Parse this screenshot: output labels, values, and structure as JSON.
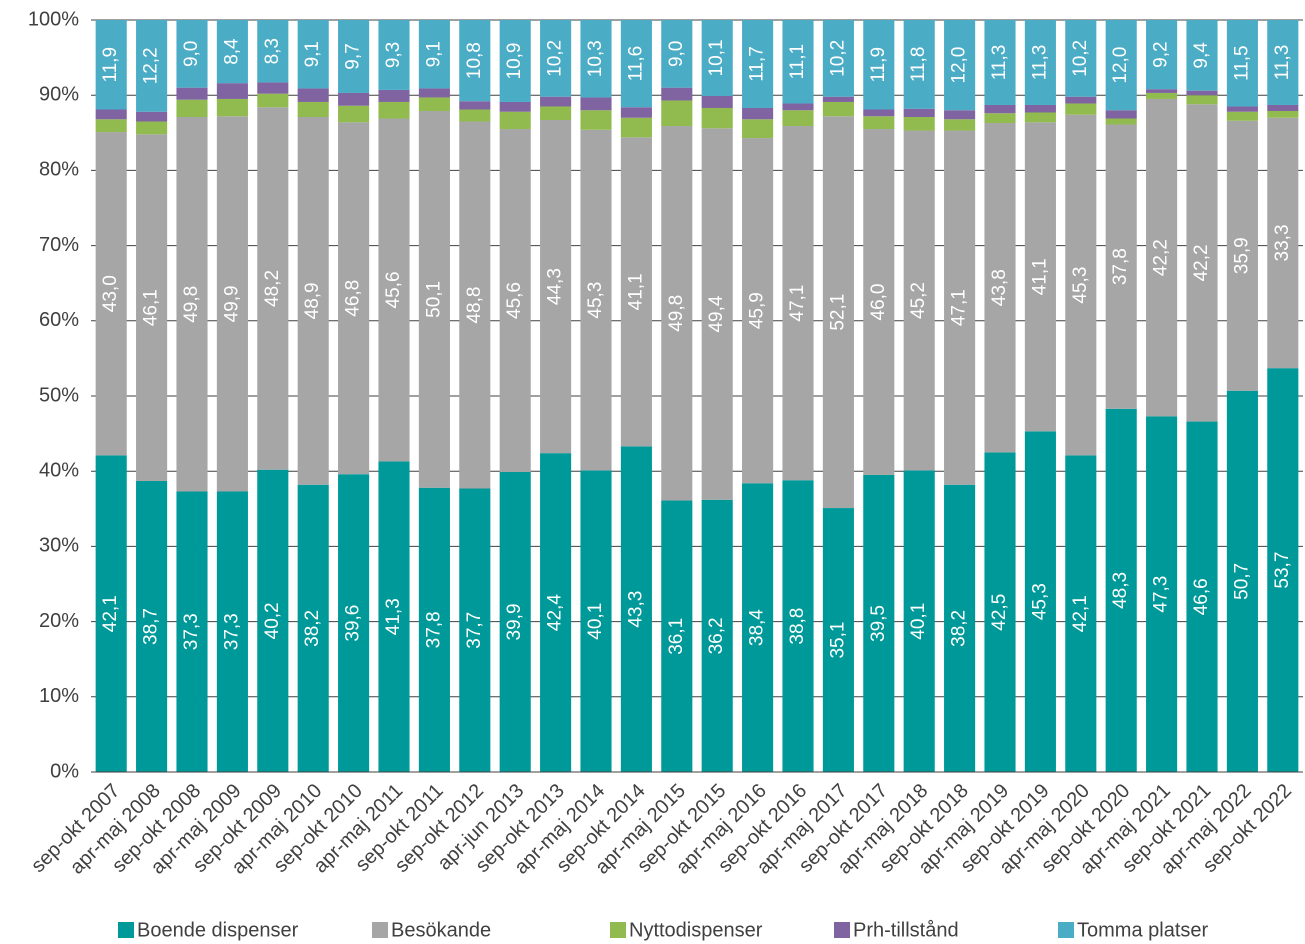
{
  "chart_data": {
    "type": "stacked_bar",
    "categories": [
      "sep-okt 2007",
      "apr-maj 2008",
      "sep-okt 2008",
      "apr-maj 2009",
      "sep-okt 2009",
      "apr-maj 2010",
      "sep-okt 2010",
      "apr-maj 2011",
      "sep-okt 2011",
      "sep-okt 2012",
      "apr-jun 2013",
      "sep-okt 2013",
      "apr-maj 2014",
      "sep-okt 2014",
      "apr-maj 2015",
      "sep-okt 2015",
      "apr-maj 2016",
      "sep-okt 2016",
      "apr-maj 2017",
      "sep-okt 2017",
      "apr-maj 2018",
      "sep-okt 2018",
      "apr-maj 2019",
      "sep-okt 2019",
      "apr-maj 2020",
      "sep-okt 2020",
      "apr-maj 2021",
      "sep-okt 2021",
      "apr-maj 2022",
      "sep-okt 2022"
    ],
    "series": [
      {
        "name": "Boende dispenser",
        "color": "#009999",
        "values": [
          42.1,
          38.7,
          37.3,
          37.3,
          40.2,
          38.2,
          39.6,
          41.3,
          37.8,
          37.7,
          39.9,
          42.4,
          40.1,
          43.3,
          36.1,
          36.2,
          38.4,
          38.8,
          35.1,
          39.5,
          40.1,
          38.2,
          42.5,
          45.3,
          42.1,
          48.3,
          47.3,
          46.6,
          50.7,
          53.7
        ],
        "value_labels": [
          "42,1",
          "38,7",
          "37,3",
          "37,3",
          "40,2",
          "38,2",
          "39,6",
          "41,3",
          "37,8",
          "37,7",
          "39,9",
          "42,4",
          "40,1",
          "43,3",
          "36,1",
          "36,2",
          "38,4",
          "38,8",
          "35,1",
          "39,5",
          "40,1",
          "38,2",
          "42,5",
          "45,3",
          "42,1",
          "48,3",
          "47,3",
          "46,6",
          "50,7",
          "53,7"
        ]
      },
      {
        "name": "Besökande",
        "color": "#a6a6a6",
        "values": [
          43.0,
          46.1,
          49.8,
          49.9,
          48.2,
          48.9,
          46.8,
          45.6,
          50.1,
          48.8,
          45.6,
          44.3,
          45.3,
          41.1,
          49.8,
          49.4,
          45.9,
          47.1,
          52.1,
          46.0,
          45.2,
          47.1,
          43.8,
          41.1,
          45.3,
          37.8,
          42.2,
          42.2,
          35.9,
          33.3
        ],
        "value_labels": [
          "43,0",
          "46,1",
          "49,8",
          "49,9",
          "48,2",
          "48,9",
          "46,8",
          "45,6",
          "50,1",
          "48,8",
          "45,6",
          "44,3",
          "45,3",
          "41,1",
          "49,8",
          "49,4",
          "45,9",
          "47,1",
          "52,1",
          "46,0",
          "45,2",
          "47,1",
          "43,8",
          "41,1",
          "45,3",
          "37,8",
          "42,2",
          "42,2",
          "35,9",
          "33,3"
        ]
      },
      {
        "name": "Nyttodispenser",
        "color": "#92bb4f",
        "values": [
          1.7,
          1.7,
          2.3,
          2.3,
          1.8,
          2.0,
          2.2,
          2.2,
          1.8,
          1.6,
          2.3,
          1.8,
          2.6,
          2.6,
          3.4,
          2.7,
          2.5,
          2.1,
          1.9,
          1.7,
          1.8,
          1.5,
          1.3,
          1.3,
          1.5,
          0.8,
          0.8,
          1.2,
          1.2,
          0.9
        ]
      },
      {
        "name": "Prh-tillstånd",
        "color": "#8064a2",
        "values": [
          1.3,
          1.3,
          1.6,
          2.1,
          1.5,
          1.8,
          1.7,
          1.6,
          1.2,
          1.1,
          1.3,
          1.3,
          1.7,
          1.4,
          1.7,
          1.6,
          1.5,
          0.9,
          0.7,
          0.9,
          1.1,
          1.2,
          1.1,
          1.0,
          0.9,
          1.1,
          0.5,
          0.6,
          0.7,
          0.8
        ]
      },
      {
        "name": "Tomma platser",
        "color": "#4bacc6",
        "values": [
          11.9,
          12.2,
          9.0,
          8.4,
          8.3,
          9.1,
          9.7,
          9.3,
          9.1,
          10.8,
          10.9,
          10.2,
          10.3,
          11.6,
          9.0,
          10.1,
          11.7,
          11.1,
          10.2,
          11.9,
          11.8,
          12.0,
          11.3,
          11.3,
          10.2,
          12.0,
          9.2,
          9.4,
          11.5,
          11.3
        ],
        "value_labels": [
          "11,9",
          "12,2",
          "9,0",
          "8,4",
          "8,3",
          "9,1",
          "9,7",
          "9,3",
          "9,1",
          "10,8",
          "10,9",
          "10,2",
          "10,3",
          "11,6",
          "9,0",
          "10,1",
          "11,7",
          "11,1",
          "10,2",
          "11,9",
          "11,8",
          "12,0",
          "11,3",
          "11,3",
          "10,2",
          "12,0",
          "9,2",
          "9,4",
          "11,5",
          "11,3"
        ]
      }
    ],
    "ylim": [
      0,
      100
    ],
    "yticks": [
      {
        "value": 0,
        "label": "0%"
      },
      {
        "value": 10,
        "label": "10%"
      },
      {
        "value": 20,
        "label": "20%"
      },
      {
        "value": 30,
        "label": "30%"
      },
      {
        "value": 40,
        "label": "40%"
      },
      {
        "value": 50,
        "label": "50%"
      },
      {
        "value": 60,
        "label": "60%"
      },
      {
        "value": 70,
        "label": "70%"
      },
      {
        "value": 80,
        "label": "80%"
      },
      {
        "value": 90,
        "label": "90%"
      },
      {
        "value": 100,
        "label": "100%"
      }
    ],
    "grid": true,
    "legend": "bottom"
  }
}
